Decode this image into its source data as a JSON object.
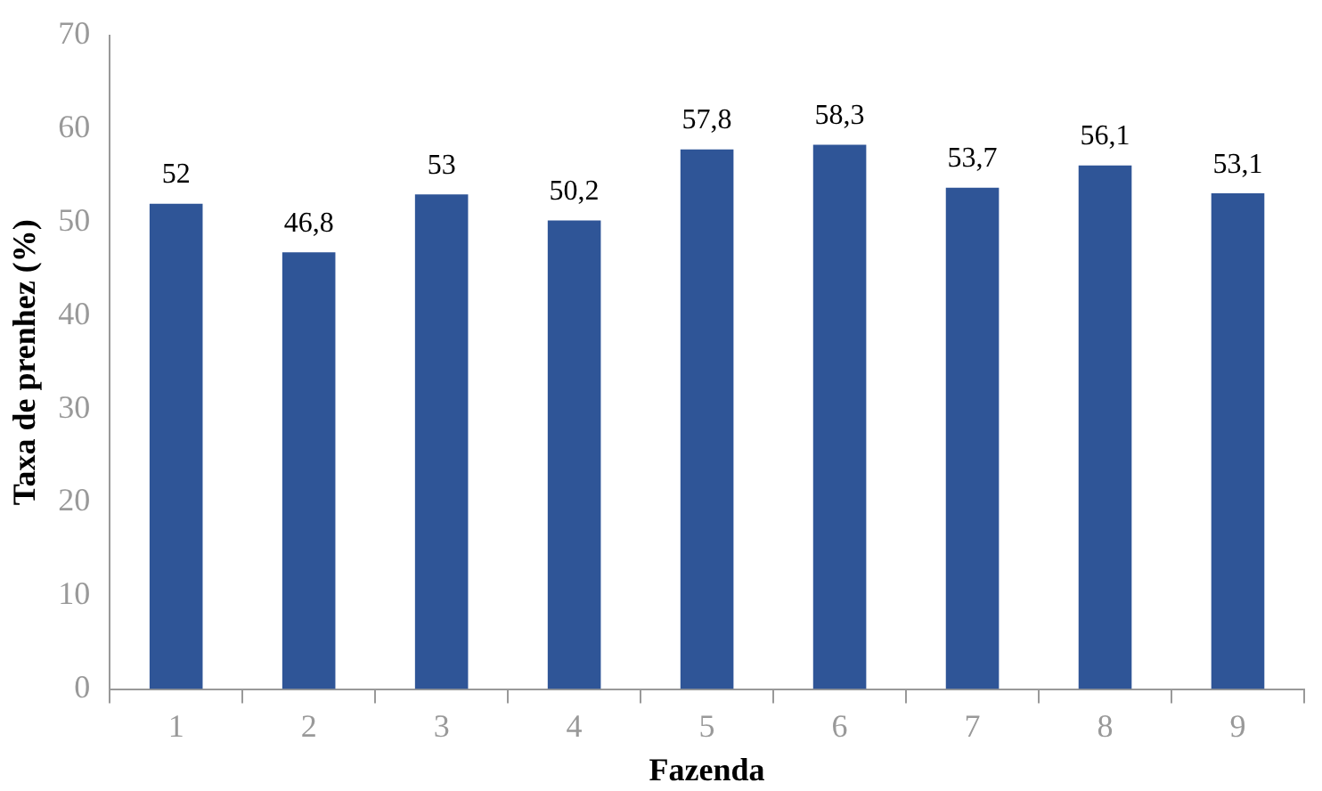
{
  "chart_data": {
    "type": "bar",
    "xlabel": "Fazenda",
    "ylabel": "Taxa de prenhez (%)",
    "categories": [
      "1",
      "2",
      "3",
      "4",
      "5",
      "6",
      "7",
      "8",
      "9"
    ],
    "values": [
      52,
      46.8,
      53,
      50.2,
      57.8,
      58.3,
      53.7,
      56.1,
      53.1
    ],
    "value_labels": [
      "52",
      "46,8",
      "53",
      "50,2",
      "57,8",
      "58,3",
      "53,7",
      "56,1",
      "53,1"
    ],
    "color": "#2f5597",
    "ylim": [
      0,
      70
    ],
    "yticks": [
      0,
      10,
      20,
      30,
      40,
      50,
      60,
      70
    ],
    "grid": false,
    "legend": false
  }
}
